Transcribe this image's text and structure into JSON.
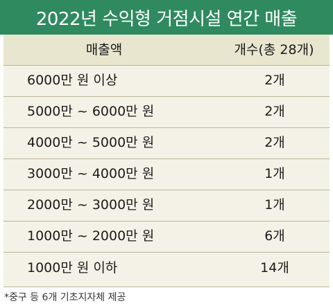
{
  "header": {
    "title": "2022년 수익형 거점시설 연간 매출"
  },
  "table": {
    "column_headers": {
      "revenue": "매출액",
      "count": "개수(총 28개)"
    },
    "rows": [
      {
        "revenue": "6000만 원 이상",
        "count": "2개"
      },
      {
        "revenue": "5000만 ~ 6000만 원",
        "count": "2개"
      },
      {
        "revenue": "4000만 ~ 5000만 원",
        "count": "2개"
      },
      {
        "revenue": "3000만 ~ 4000만 원",
        "count": "1개"
      },
      {
        "revenue": "2000만 ~ 3000만 원",
        "count": "1개"
      },
      {
        "revenue": "1000만 ~ 2000만 원",
        "count": "6개"
      },
      {
        "revenue": "1000만 원 이하",
        "count": "14개"
      }
    ]
  },
  "footnote": "*중구 등 6개 기초지자체 제공",
  "colors": {
    "header_bg": "#2f8a5f",
    "table_bg": "#f4f2e6",
    "column_header_bg": "#e8e6cf"
  }
}
